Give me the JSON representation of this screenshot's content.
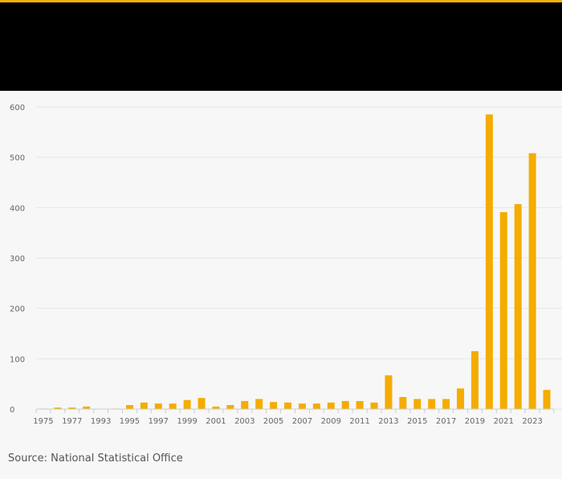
{
  "source": "Source: National Statistical Office",
  "colors": {
    "accent": "#f5b400",
    "bar": "#f5ac00",
    "header": "#000000",
    "grid": "#e6e6e6"
  },
  "chart_data": {
    "type": "bar",
    "title": "",
    "xlabel": "",
    "ylabel": "",
    "ylim": [
      0,
      600
    ],
    "yticks": [
      0,
      100,
      200,
      300,
      400,
      500,
      600
    ],
    "grid": true,
    "categories": [
      "1975",
      "1976",
      "1977",
      "1978",
      "1993",
      "1994",
      "1995",
      "1996",
      "1997",
      "1998",
      "1999",
      "2000",
      "2001",
      "2002",
      "2003",
      "2004",
      "2005",
      "2006",
      "2007",
      "2008",
      "2009",
      "2010",
      "2011",
      "2012",
      "2013",
      "2014",
      "2015",
      "2016",
      "2017",
      "2018",
      "2019",
      "2020",
      "2021",
      "2022",
      "2023",
      "2024"
    ],
    "values": [
      1,
      3,
      3,
      5,
      0,
      1,
      8,
      13,
      11,
      11,
      18,
      22,
      5,
      8,
      16,
      20,
      14,
      13,
      11,
      11,
      13,
      16,
      16,
      13,
      67,
      24,
      20,
      20,
      20,
      41,
      115,
      585,
      391,
      407,
      508,
      38
    ],
    "visible_tick_labels": [
      "1975",
      "1977",
      "1993",
      "1995",
      "1997",
      "1999",
      "2001",
      "2003",
      "2005",
      "2007",
      "2009",
      "2011",
      "2013",
      "2015",
      "2017",
      "2019",
      "2021",
      "2023"
    ]
  }
}
